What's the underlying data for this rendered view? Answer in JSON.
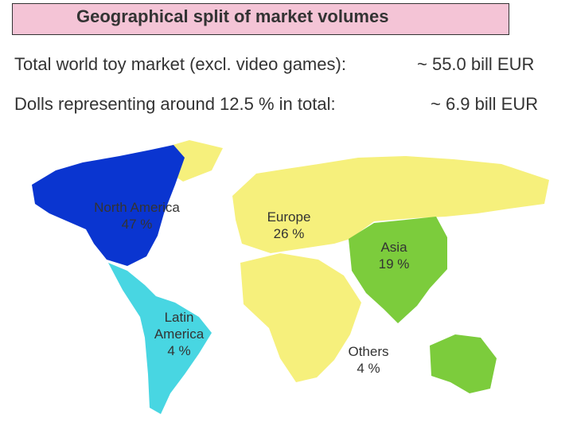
{
  "header": {
    "title": "Geographical split of market volumes"
  },
  "summary": [
    {
      "text": "Total world toy market (excl. video games):",
      "amount": "~ 55.0 bill EUR"
    },
    {
      "text": "Dolls representing around 12.5 % in total:",
      "amount": "~ 6.9 bill EUR"
    }
  ],
  "regions": [
    {
      "name": "North America",
      "share": "47 %"
    },
    {
      "name": "Europe",
      "share": "26 %"
    },
    {
      "name": "Asia",
      "share": "19 %"
    },
    {
      "name": "Latin America",
      "share": "4 %"
    },
    {
      "name": "Others",
      "share": "4 %"
    }
  ]
}
